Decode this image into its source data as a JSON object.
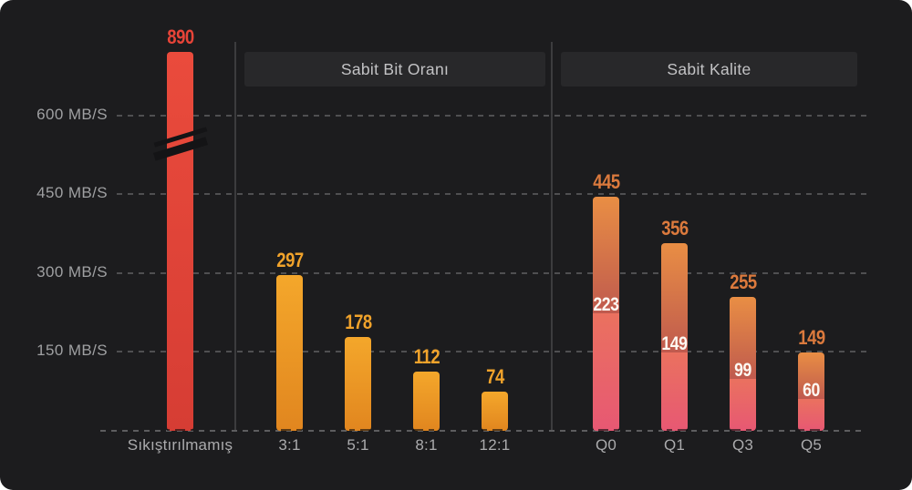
{
  "axis": {
    "tick_labels": [
      "600 MB/S",
      "450 MB/S",
      "300 MB/S",
      "150 MB/S"
    ],
    "tick_values": [
      600,
      450,
      300,
      150
    ]
  },
  "chart_data": {
    "type": "bar",
    "ylabel": "MB/S",
    "ylim": [
      0,
      650
    ],
    "grid": "dashed horizontal",
    "axis_break_note": "first bar exceeds scale and is drawn with a break",
    "groups": [
      {
        "name": "uncompressed",
        "header": null,
        "style": "red",
        "bars": [
          {
            "label": "Sıkıştırılmamış",
            "value": 890,
            "broken": true
          }
        ]
      },
      {
        "name": "constant-bitrate",
        "header": "Sabit Bit Oranı",
        "style": "orange",
        "bars": [
          {
            "label": "3:1",
            "value": 297
          },
          {
            "label": "5:1",
            "value": 178
          },
          {
            "label": "8:1",
            "value": 112
          },
          {
            "label": "12:1",
            "value": 74
          }
        ]
      },
      {
        "name": "constant-quality",
        "header": "Sabit Kalite",
        "style": "quality",
        "bars": [
          {
            "label": "Q0",
            "value": 445,
            "sub_value": 223
          },
          {
            "label": "Q1",
            "value": 356,
            "sub_value": 149
          },
          {
            "label": "Q3",
            "value": 255,
            "sub_value": 99
          },
          {
            "label": "Q5",
            "value": 149,
            "sub_value": 60
          }
        ]
      }
    ],
    "colors": {
      "background": "#1C1C1E",
      "grid": "#58585A",
      "divider": "#3C3C3E",
      "header_bg": "#28282A",
      "header_text": "#C3C3C5",
      "axis_text": "#9FA0A2",
      "bar_label_text": "#ABABAD",
      "red_bar_top": "#EA4B3C",
      "red_bar_bottom": "#D63D34",
      "orange_bar_top": "#F4A72B",
      "orange_bar_bottom": "#E1861F",
      "quality_top_start": "#E98E44",
      "quality_top_end": "#BF5A4E",
      "quality_bottom_start": "#EA715F",
      "quality_bottom_end": "#E75873",
      "value_red": "#E84438",
      "value_orange": "#F1A32B",
      "value_quality": "#DC7A3D",
      "value_inner": "#FFFFFF"
    }
  }
}
